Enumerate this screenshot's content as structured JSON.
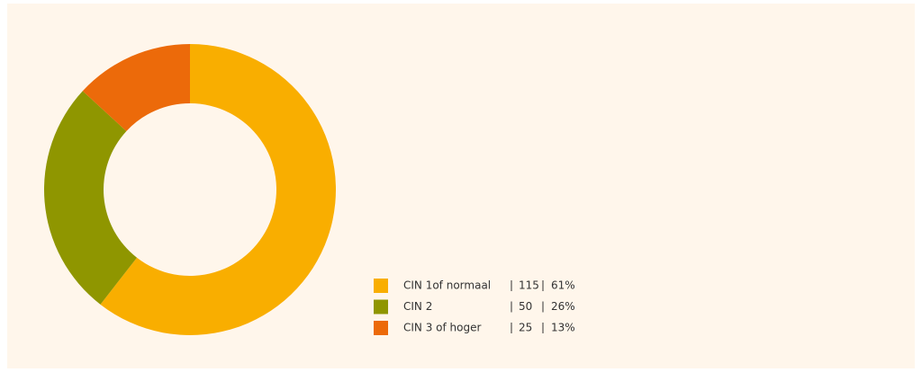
{
  "chart_data": {
    "type": "donut",
    "categories": [
      "CIN 1of normaal",
      "CIN 2",
      "CIN 3 of hoger"
    ],
    "values": [
      115,
      50,
      25
    ],
    "percentages": [
      "61%",
      "26%",
      "13%"
    ],
    "colors": [
      "#f9ae00",
      "#8f9600",
      "#ec6a0a"
    ],
    "legend": "bottom-right"
  }
}
